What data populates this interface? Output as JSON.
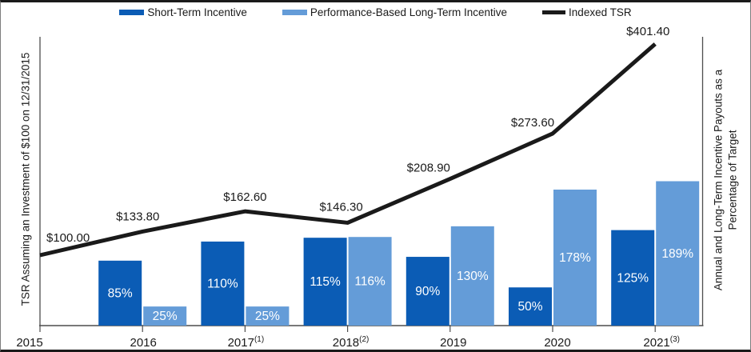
{
  "legend": {
    "items": [
      {
        "label": "Short-Term Incentive",
        "color": "#0b5cb5",
        "type": "swatch"
      },
      {
        "label": "Performance-Based Long-Term Incentive",
        "color": "#649cd8",
        "type": "swatch"
      },
      {
        "label": "Indexed TSR",
        "color": "#1a1a1a",
        "type": "line"
      }
    ]
  },
  "axes": {
    "left_label": "TSR Assuming an Investment of $100 on 12/31/2015",
    "right_label": "Annual and Long-Term Incentive Payouts as a Percentage of Target"
  },
  "colors": {
    "short_term": "#0b5cb5",
    "long_term": "#649cd8",
    "tsr_line": "#1a1a1a",
    "axis": "#4d4d4d",
    "bar_label": "#ffffff",
    "text": "#1a1a1a"
  },
  "chart_data": {
    "type": "bar+line",
    "categories": [
      "2015",
      "2016",
      "2017",
      "2018",
      "2019",
      "2020",
      "2021"
    ],
    "category_footnotes": [
      "",
      "",
      "(1)",
      "(2)",
      "",
      "",
      "(3)"
    ],
    "series": [
      {
        "name": "Short-Term Incentive",
        "type": "bar",
        "axis": "right-percent",
        "color": "#0b5cb5",
        "values": [
          null,
          85,
          110,
          115,
          90,
          50,
          125
        ],
        "labels": [
          "",
          "85%",
          "110%",
          "115%",
          "90%",
          "50%",
          "125%"
        ]
      },
      {
        "name": "Performance-Based Long-Term Incentive",
        "type": "bar",
        "axis": "right-percent",
        "color": "#649cd8",
        "values": [
          null,
          25,
          25,
          116,
          130,
          178,
          189
        ],
        "labels": [
          "",
          "25%",
          "25%",
          "116%",
          "130%",
          "178%",
          "189%"
        ]
      },
      {
        "name": "Indexed TSR",
        "type": "line",
        "axis": "left-dollars",
        "color": "#1a1a1a",
        "values": [
          100.0,
          133.8,
          162.6,
          146.3,
          208.9,
          273.6,
          401.4
        ],
        "labels": [
          "$100.00",
          "$133.80",
          "$162.60",
          "$146.30",
          "$208.90",
          "$273.60",
          "$401.40"
        ]
      }
    ],
    "legend_position": "top",
    "grid": false
  }
}
